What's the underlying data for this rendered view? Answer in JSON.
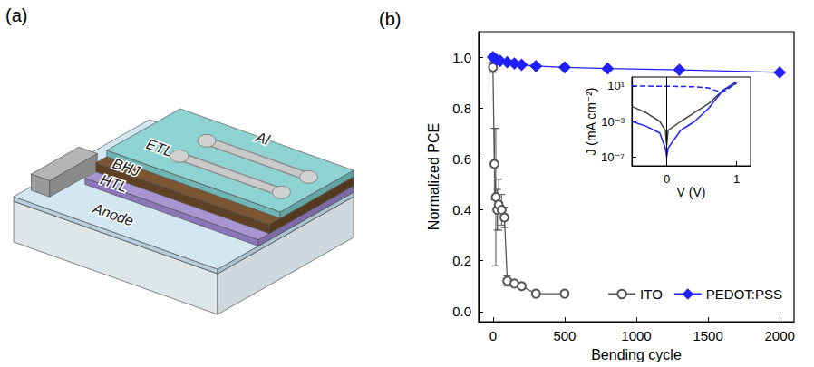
{
  "diagram": {
    "panel_label": "(a)",
    "layers": {
      "electrode": "Al",
      "etl": "ETL",
      "active": "BHJ",
      "htl": "HTL",
      "anode": "Anode"
    }
  },
  "chart_data": [
    {
      "type": "line",
      "title": "(b)",
      "x_label": "Bending cycle",
      "y_label": "Normalized PCE",
      "xlim": [
        -100,
        2100
      ],
      "xticks": [
        0,
        500,
        1000,
        1500,
        2000
      ],
      "ylim": [
        -0.04,
        1.1
      ],
      "yticks": [
        {
          "value": 0,
          "label": "0.0"
        },
        {
          "value": 0.2,
          "label": "0.2"
        },
        {
          "value": 0.4,
          "label": "0.4"
        },
        {
          "value": 0.6,
          "label": "0.6"
        },
        {
          "value": 0.8,
          "label": "0.8"
        },
        {
          "value": 1,
          "label": "1.0"
        }
      ],
      "grid": false,
      "legend": "lower right",
      "series": [
        {
          "name": "ITO",
          "color": "#555555",
          "marker": "open circle",
          "line_style": "solid",
          "x": [
            0,
            10,
            20,
            30,
            40,
            60,
            80,
            100,
            150,
            200,
            300,
            500
          ],
          "values": [
            0.96,
            0.58,
            0.45,
            0.4,
            0.42,
            0.4,
            0.37,
            0.12,
            0.11,
            0.1,
            0.07,
            0.07
          ],
          "error": [
            0.02,
            0.14,
            0.27,
            0.08,
            0.1,
            0.06,
            0.04,
            0.02,
            0.01,
            0.01,
            0.01,
            0.01
          ]
        },
        {
          "name": "PEDOT:PSS",
          "color": "#1f1fff",
          "marker": "diamond",
          "line_style": "solid",
          "x": [
            0,
            25,
            50,
            100,
            150,
            200,
            300,
            500,
            800,
            1300,
            2000
          ],
          "values": [
            1.0,
            0.99,
            0.985,
            0.98,
            0.975,
            0.97,
            0.965,
            0.96,
            0.955,
            0.95,
            0.94
          ]
        }
      ]
    },
    {
      "type": "line",
      "x_label": "V (V)",
      "y_label": "J (mA cm⁻²)",
      "log": "y",
      "xlim": [
        -0.5,
        1.2
      ],
      "xticks": [
        0,
        1
      ],
      "ylim": [
        1e-08,
        100
      ],
      "yticks": [
        {
          "value": 1e-07,
          "label": "10⁻⁷"
        },
        {
          "value": 0.001,
          "label": "10⁻³"
        },
        {
          "value": 10,
          "label": "10¹"
        }
      ],
      "reference_line_x": 0,
      "series": [
        {
          "color": "#1f1fff",
          "line_style": "dashed",
          "marker": "none",
          "x": [
            -0.5,
            -0.3,
            -0.1,
            0,
            0.2,
            0.4,
            0.6,
            0.7,
            0.8,
            0.9,
            1.0
          ],
          "values": [
            10,
            9.5,
            9,
            9,
            8.5,
            8,
            6,
            3,
            2,
            6,
            20
          ]
        },
        {
          "color": "#444444",
          "line_style": "solid",
          "marker": "none",
          "x": [
            -0.5,
            -0.3,
            -0.1,
            -0.02,
            0,
            0.02,
            0.2,
            0.4,
            0.6,
            0.8,
            1.0
          ],
          "values": [
            0.05,
            0.01,
            0.001,
            0.0001,
            2e-06,
            0.0001,
            0.001,
            0.01,
            0.1,
            3,
            20
          ]
        },
        {
          "color": "#1f1fff",
          "line_style": "solid",
          "marker": "none",
          "x": [
            -0.5,
            -0.3,
            -0.1,
            -0.02,
            0,
            0.02,
            0.2,
            0.4,
            0.6,
            0.8,
            1.0
          ],
          "values": [
            0.001,
            0.0003,
            5e-05,
            1e-06,
            1e-07,
            1e-06,
            0.0001,
            0.001,
            0.03,
            3,
            30
          ]
        }
      ]
    }
  ]
}
